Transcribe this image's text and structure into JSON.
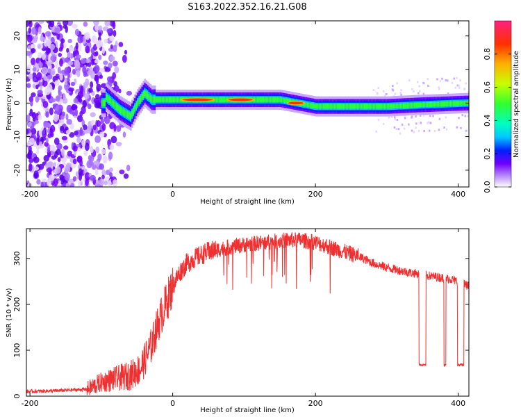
{
  "title": "S163.2022.352.16.21.G08",
  "chart_data": [
    {
      "type": "heatmap",
      "xlabel": "Height of straight line (km)",
      "ylabel": "Frequency (Hz)",
      "xlim": [
        -205,
        415
      ],
      "ylim": [
        -25,
        24.5
      ],
      "xticks": [
        -200,
        0,
        200,
        400
      ],
      "yticks": [
        -20,
        -10,
        0,
        10,
        20
      ],
      "colorbar": {
        "label": "Normalized spectral amplitude",
        "range": [
          0,
          1
        ],
        "ticks": [
          0.0,
          0.2,
          0.4,
          0.6,
          0.8
        ]
      },
      "ridge_frequency": {
        "x": [
          -95,
          -75,
          -60,
          -50,
          -40,
          -30,
          -25,
          0,
          50,
          100,
          150,
          175,
          200,
          250,
          300,
          350,
          410
        ],
        "y": [
          2,
          -2,
          -4,
          0,
          3,
          1,
          1,
          1,
          1,
          1,
          1,
          0,
          -1,
          -1,
          -1,
          -0.5,
          0
        ]
      },
      "high_amplitude_segments": [
        {
          "x": [
            10,
            60
          ],
          "y": 1
        },
        {
          "x": [
            75,
            115
          ],
          "y": 1
        },
        {
          "x": [
            160,
            185
          ],
          "y": 0
        }
      ]
    },
    {
      "type": "line",
      "xlabel": "Height of straight line (km)",
      "ylabel": "SNR (10 * v/v)",
      "xlim": [
        -205,
        415
      ],
      "ylim": [
        0,
        365
      ],
      "xticks": [
        -200,
        0,
        200,
        400
      ],
      "yticks": [
        0,
        100,
        200,
        300
      ],
      "color": "#f03030",
      "series": [
        {
          "x": [
            -205,
            -160,
            -120,
            -100,
            -80,
            -60,
            -45,
            -30,
            -20,
            -10,
            0,
            10,
            20,
            30,
            50,
            80,
            100,
            130,
            160,
            180,
            200,
            230,
            260,
            280,
            300,
            330,
            360,
            390,
            415
          ],
          "y": [
            10,
            12,
            15,
            30,
            38,
            45,
            60,
            110,
            160,
            200,
            240,
            270,
            290,
            300,
            315,
            325,
            330,
            335,
            340,
            340,
            335,
            320,
            305,
            290,
            280,
            270,
            262,
            255,
            240
          ]
        }
      ],
      "dropouts": [
        {
          "x": [
            345,
            355
          ],
          "y": 65
        },
        {
          "x": [
            380,
            383
          ],
          "y": 65
        },
        {
          "x": [
            399,
            408
          ],
          "y": 65
        }
      ]
    }
  ]
}
